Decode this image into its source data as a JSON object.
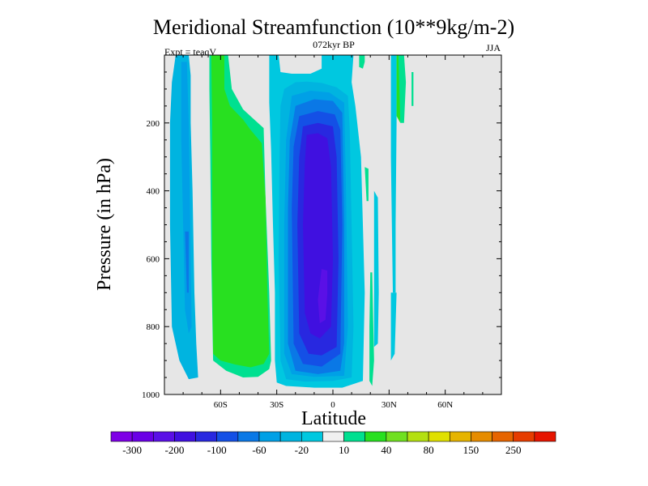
{
  "chart_data": {
    "type": "heatmap",
    "title": "Meridional Streamfunction (10**9kg/m-2)",
    "subtitle": "072kyr BP",
    "left_label": "Expt = teaqV",
    "right_label": "JJA",
    "xlabel": "Latitude",
    "ylabel": "Pressure (in hPa)",
    "xlim": [
      -90,
      90
    ],
    "ylim": [
      1000,
      0
    ],
    "x_ticks": [
      {
        "value": -60,
        "label": "60S"
      },
      {
        "value": -30,
        "label": "30S"
      },
      {
        "value": 0,
        "label": "0"
      },
      {
        "value": 30,
        "label": "30N"
      },
      {
        "value": 60,
        "label": "60N"
      }
    ],
    "y_ticks": [
      {
        "value": 200,
        "label": "200"
      },
      {
        "value": 400,
        "label": "400"
      },
      {
        "value": 600,
        "label": "600"
      },
      {
        "value": 800,
        "label": "800"
      },
      {
        "value": 1000,
        "label": "1000"
      }
    ],
    "background_color": "#e6e6e6",
    "colorbar": {
      "colors": [
        "#7e00e6",
        "#6a00e6",
        "#5a10e6",
        "#4010e0",
        "#2828e0",
        "#1450e6",
        "#0a78e6",
        "#00a0e6",
        "#00b4e0",
        "#00c8e0",
        "#f0f0f0",
        "#00e090",
        "#28e020",
        "#70e020",
        "#b4e010",
        "#e0e000",
        "#e6b400",
        "#e68c00",
        "#e66400",
        "#e63c00",
        "#e61400"
      ],
      "labels": [
        "-300",
        "-200",
        "-100",
        "-60",
        "-20",
        "10",
        "40",
        "80",
        "150",
        "250"
      ]
    },
    "contours": [
      {
        "name": "s-lobe-outer",
        "color": "#00b4e0",
        "points": [
          [
            -84,
            0
          ],
          [
            -77,
            0
          ],
          [
            -76,
            60
          ],
          [
            -76,
            200
          ],
          [
            -75,
            400
          ],
          [
            -74,
            700
          ],
          [
            -73,
            850
          ],
          [
            -72,
            950
          ],
          [
            -77,
            955
          ],
          [
            -82,
            900
          ],
          [
            -86,
            800
          ],
          [
            -87,
            500
          ],
          [
            -87,
            200
          ],
          [
            -86,
            80
          ]
        ]
      },
      {
        "name": "s-lobe-inner",
        "color": "#00a0e6",
        "points": [
          [
            -81,
            20
          ],
          [
            -78,
            20
          ],
          [
            -77,
            200
          ],
          [
            -76.5,
            400
          ],
          [
            -76,
            600
          ],
          [
            -75.5,
            800
          ],
          [
            -77,
            820
          ],
          [
            -79,
            750
          ],
          [
            -80,
            500
          ],
          [
            -81,
            250
          ]
        ]
      },
      {
        "name": "s-lobe-core",
        "color": "#0a78e6",
        "points": [
          [
            -79,
            520
          ],
          [
            -77,
            520
          ],
          [
            -77,
            700
          ],
          [
            -78,
            700
          ]
        ]
      },
      {
        "name": "green-outer",
        "color": "#00e090",
        "points": [
          [
            -66,
            0
          ],
          [
            -56,
            0
          ],
          [
            -54,
            100
          ],
          [
            -48,
            160
          ],
          [
            -42,
            190
          ],
          [
            -37,
            215
          ],
          [
            -36,
            420
          ],
          [
            -34,
            700
          ],
          [
            -33,
            900
          ],
          [
            -34,
            925
          ],
          [
            -40,
            948
          ],
          [
            -48,
            950
          ],
          [
            -57,
            930
          ],
          [
            -64,
            900
          ],
          [
            -65,
            600
          ],
          [
            -65.5,
            300
          ],
          [
            -66,
            100
          ]
        ]
      },
      {
        "name": "green-inner",
        "color": "#28e020",
        "points": [
          [
            -65,
            0
          ],
          [
            -58,
            0
          ],
          [
            -58,
            100
          ],
          [
            -55,
            150
          ],
          [
            -48,
            190
          ],
          [
            -44,
            220
          ],
          [
            -38,
            260
          ],
          [
            -36,
            420
          ],
          [
            -35,
            700
          ],
          [
            -34,
            880
          ],
          [
            -37,
            910
          ],
          [
            -44,
            920
          ],
          [
            -52,
            912
          ],
          [
            -60,
            900
          ],
          [
            -64,
            880
          ],
          [
            -64.5,
            600
          ],
          [
            -64.5,
            200
          ]
        ]
      },
      {
        "name": "n-cell-outer",
        "color": "#00c8e0",
        "points": [
          [
            -29,
            0
          ],
          [
            -34,
            0
          ],
          [
            -34,
            140
          ],
          [
            -33,
            280
          ],
          [
            -32,
            500
          ],
          [
            -31,
            700
          ],
          [
            -31,
            900
          ],
          [
            -30,
            965
          ],
          [
            -25,
            975
          ],
          [
            -10,
            980
          ],
          [
            5,
            980
          ],
          [
            16,
            960
          ],
          [
            17,
            700
          ],
          [
            15,
            300
          ],
          [
            12,
            150
          ],
          [
            10,
            80
          ],
          [
            11,
            0
          ],
          [
            -6,
            0
          ],
          [
            -6,
            40
          ],
          [
            -12,
            55
          ],
          [
            -22,
            55
          ],
          [
            -28,
            50
          ]
        ]
      },
      {
        "name": "n-cell-1",
        "color": "#00b4e0",
        "points": [
          [
            -26,
            100
          ],
          [
            -20,
            80
          ],
          [
            -14,
            78
          ],
          [
            -6,
            82
          ],
          [
            2,
            95
          ],
          [
            8,
            120
          ],
          [
            9,
            220
          ],
          [
            10,
            500
          ],
          [
            11,
            800
          ],
          [
            10,
            950
          ],
          [
            0,
            960
          ],
          [
            -15,
            962
          ],
          [
            -25,
            955
          ],
          [
            -28,
            900
          ],
          [
            -29,
            600
          ],
          [
            -28.5,
            300
          ],
          [
            -28,
            150
          ]
        ]
      },
      {
        "name": "n-cell-2",
        "color": "#00a0e6",
        "points": [
          [
            -22,
            120
          ],
          [
            -12,
            105
          ],
          [
            -2,
            110
          ],
          [
            6,
            140
          ],
          [
            7,
            400
          ],
          [
            8,
            800
          ],
          [
            6,
            945
          ],
          [
            -10,
            948
          ],
          [
            -22,
            940
          ],
          [
            -26,
            880
          ],
          [
            -26,
            500
          ],
          [
            -25,
            250
          ]
        ]
      },
      {
        "name": "n-cell-3",
        "color": "#0a78e6",
        "points": [
          [
            -20,
            150
          ],
          [
            -10,
            130
          ],
          [
            0,
            135
          ],
          [
            5,
            170
          ],
          [
            6,
            500
          ],
          [
            6,
            850
          ],
          [
            4,
            930
          ],
          [
            -8,
            940
          ],
          [
            -20,
            930
          ],
          [
            -24,
            850
          ],
          [
            -24,
            450
          ],
          [
            -23,
            250
          ]
        ]
      },
      {
        "name": "n-cell-4",
        "color": "#1450e6",
        "points": [
          [
            -18,
            180
          ],
          [
            -8,
            165
          ],
          [
            1,
            175
          ],
          [
            4,
            220
          ],
          [
            5,
            500
          ],
          [
            4,
            880
          ],
          [
            -6,
            918
          ],
          [
            -16,
            910
          ],
          [
            -21,
            850
          ],
          [
            -22,
            450
          ],
          [
            -21,
            270
          ]
        ]
      },
      {
        "name": "n-cell-5",
        "color": "#2828e0",
        "points": [
          [
            -16,
            210
          ],
          [
            -8,
            200
          ],
          [
            0,
            210
          ],
          [
            2,
            300
          ],
          [
            3,
            600
          ],
          [
            2,
            860
          ],
          [
            -6,
            885
          ],
          [
            -13,
            880
          ],
          [
            -18,
            820
          ],
          [
            -19,
            500
          ],
          [
            -18,
            300
          ]
        ]
      },
      {
        "name": "n-cell-6",
        "color": "#4010e0",
        "points": [
          [
            -14,
            235
          ],
          [
            -8,
            230
          ],
          [
            -3,
            245
          ],
          [
            -1,
            330
          ],
          [
            0,
            600
          ],
          [
            -1,
            800
          ],
          [
            -7,
            835
          ],
          [
            -12,
            820
          ],
          [
            -15,
            760
          ],
          [
            -16,
            500
          ],
          [
            -15,
            320
          ]
        ]
      },
      {
        "name": "n-cell-core",
        "color": "#5a10e6",
        "points": [
          [
            -6,
            630
          ],
          [
            -3,
            635
          ],
          [
            -3,
            700
          ],
          [
            -4,
            780
          ],
          [
            -7,
            790
          ],
          [
            -8,
            720
          ]
        ]
      },
      {
        "name": "ne-green-strip",
        "color": "#00e090",
        "points": [
          [
            14,
            0
          ],
          [
            17,
            0
          ],
          [
            17,
            20
          ],
          [
            16,
            40
          ],
          [
            14,
            35
          ]
        ]
      },
      {
        "name": "ne-green-strip-2",
        "color": "#00e090",
        "points": [
          [
            20,
            640
          ],
          [
            21,
            640
          ],
          [
            22,
            900
          ],
          [
            21,
            975
          ],
          [
            19.5,
            960
          ],
          [
            19.5,
            800
          ]
        ]
      },
      {
        "name": "ne-cyan-strip",
        "color": "#00c8e0",
        "points": [
          [
            22,
            400
          ],
          [
            24,
            420
          ],
          [
            24.5,
            700
          ],
          [
            24,
            850
          ],
          [
            22,
            860
          ],
          [
            22,
            600
          ]
        ]
      },
      {
        "name": "ne-cyan-strip-2",
        "color": "#00c8e0",
        "points": [
          [
            31,
            0
          ],
          [
            34,
            0
          ],
          [
            34,
            200
          ],
          [
            33.5,
            500
          ],
          [
            33.5,
            700
          ],
          [
            32,
            700
          ],
          [
            31.5,
            500
          ],
          [
            31,
            300
          ]
        ]
      },
      {
        "name": "n-green-thin-a",
        "color": "#00e090",
        "points": [
          [
            17,
            330
          ],
          [
            19,
            335
          ],
          [
            19,
            430
          ],
          [
            18,
            430
          ]
        ]
      },
      {
        "name": "n-green-thin-b",
        "color": "#28e020",
        "points": [
          [
            34,
            0
          ],
          [
            36,
            0
          ],
          [
            37,
            100
          ],
          [
            36,
            200
          ],
          [
            34,
            180
          ]
        ]
      },
      {
        "name": "n-green-thin-c",
        "color": "#00e090",
        "points": [
          [
            35,
            0
          ],
          [
            38,
            0
          ],
          [
            39,
            80
          ],
          [
            38,
            200
          ],
          [
            36,
            200
          ]
        ]
      },
      {
        "name": "n-green-thin-d",
        "color": "#00e090",
        "points": [
          [
            42,
            50
          ],
          [
            43,
            50
          ],
          [
            43,
            150
          ],
          [
            42,
            150
          ]
        ]
      },
      {
        "name": "n-cyan-thin",
        "color": "#00c8e0",
        "points": [
          [
            31,
            700
          ],
          [
            34,
            700
          ],
          [
            33,
            880
          ],
          [
            31,
            900
          ]
        ]
      }
    ]
  }
}
